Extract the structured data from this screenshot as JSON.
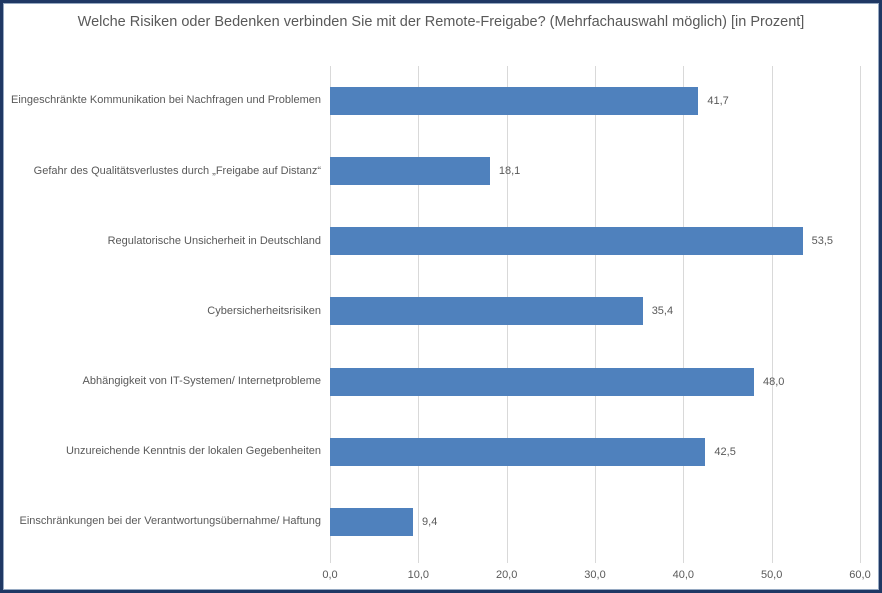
{
  "title": "Welche Risiken oder Bedenken verbinden Sie mit der Remote-Freigabe? (Mehrfachauswahl möglich) [in Prozent]",
  "colors": {
    "bar": "#4F81BD",
    "gridline": "#D9D9D9",
    "text": "#595959",
    "frame_border": "#1F3864",
    "frame_inner_border": "#96A9C2"
  },
  "chart_data": {
    "type": "bar",
    "orientation": "horizontal",
    "title": "Welche Risiken oder Bedenken verbinden Sie mit der Remote-Freigabe? (Mehrfachauswahl möglich) [in Prozent]",
    "categories": [
      "Eingeschränkte Kommunikation bei Nachfragen und Problemen",
      "Gefahr des Qualitätsverlustes durch „Freigabe auf Distanz“",
      "Regulatorische Unsicherheit in Deutschland",
      "Cybersicherheitsrisiken",
      "Abhängigkeit von IT-Systemen/ Internetprobleme",
      "Unzureichende Kenntnis der lokalen Gegebenheiten",
      "Einschränkungen bei der Verantwortungsübernahme/ Haftung"
    ],
    "values": [
      41.7,
      18.1,
      53.5,
      35.4,
      48.0,
      42.5,
      9.4
    ],
    "value_labels": [
      "41,7",
      "18,1",
      "53,5",
      "35,4",
      "48,0",
      "42,5",
      "9,4"
    ],
    "xlabel": "",
    "ylabel": "",
    "xlim": [
      0,
      60
    ],
    "x_ticks": [
      0,
      10,
      20,
      30,
      40,
      50,
      60
    ],
    "x_tick_labels": [
      "0,0",
      "10,0",
      "20,0",
      "30,0",
      "40,0",
      "50,0",
      "60,0"
    ],
    "grid": true,
    "legend": false,
    "bar_color": "#4F81BD"
  }
}
